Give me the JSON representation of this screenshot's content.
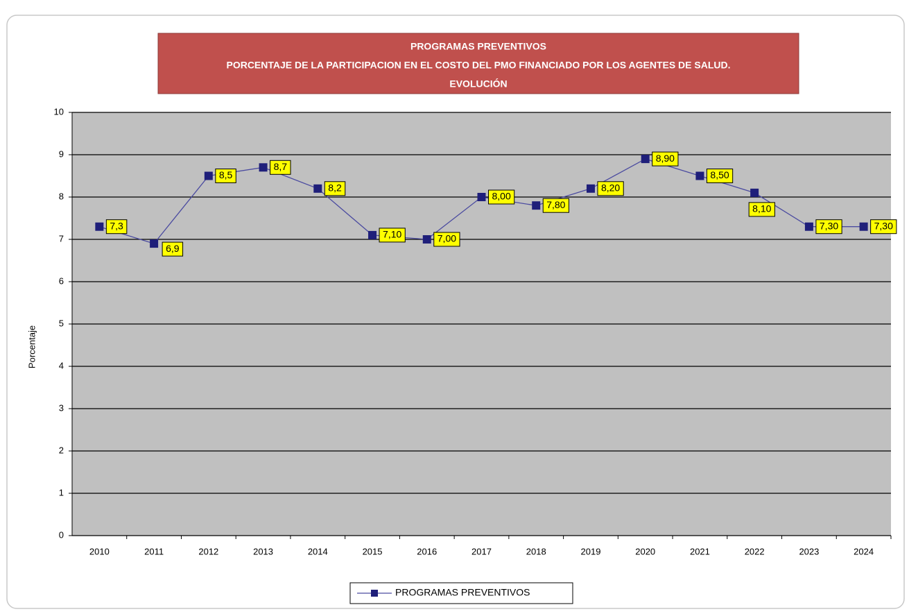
{
  "chart_data": {
    "type": "line",
    "title": [
      "PROGRAMAS PREVENTIVOS",
      "PORCENTAJE  DE LA PARTICIPACION EN  EL COSTO   DEL PMO FINANCIADO POR LOS AGENTES  DE  SALUD.",
      "EVOLUCIÓN"
    ],
    "y_label": "Porcentaje",
    "categories": [
      "2010",
      "2011",
      "2012",
      "2013",
      "2014",
      "2015",
      "2016",
      "2017",
      "2018",
      "2019",
      "2020",
      "2021",
      "2022",
      "2023",
      "2024"
    ],
    "series": [
      {
        "name": "PROGRAMAS PREVENTIVOS",
        "color": "#1f1f7a",
        "values": [
          7.3,
          6.9,
          8.5,
          8.7,
          8.2,
          7.1,
          7.0,
          8.0,
          7.8,
          8.2,
          8.9,
          8.5,
          8.1,
          7.3,
          7.3
        ],
        "value_labels": [
          "7,3",
          "6,9",
          "8,5",
          "8,7",
          "8,2",
          "7,10",
          "7,00",
          "8,00",
          "7,80",
          "8,20",
          "8,90",
          "8,50",
          "8,10",
          "7,30",
          "7,30"
        ]
      }
    ],
    "ylim": [
      0,
      10
    ],
    "yticks": [
      0,
      1,
      2,
      3,
      4,
      5,
      6,
      7,
      8,
      9,
      10
    ],
    "grid": true,
    "legend": "bottom"
  }
}
